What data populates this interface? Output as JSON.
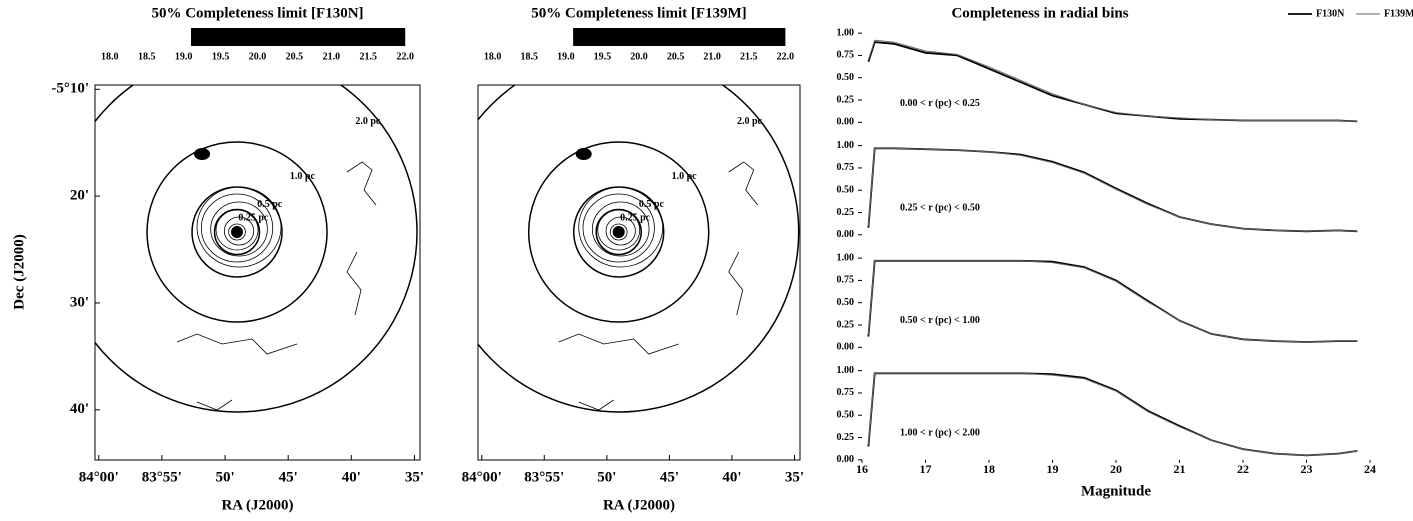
{
  "chart_data": [
    {
      "type": "map",
      "title": "50% Completeness limit [F130N]",
      "colorbar": {
        "lim": [
          17.8,
          22.2
        ],
        "filled": [
          19.1,
          22.0
        ],
        "ticks": [
          {
            "value": 18.0,
            "label": "18.0"
          },
          {
            "value": 18.5,
            "label": "18.5"
          },
          {
            "value": 19.0,
            "label": "19.0"
          },
          {
            "value": 19.5,
            "label": "19.5"
          },
          {
            "value": 20.0,
            "label": "20.0"
          },
          {
            "value": 20.5,
            "label": "20.5"
          },
          {
            "value": 21.0,
            "label": "21.0"
          },
          {
            "value": 21.5,
            "label": "21.5"
          },
          {
            "value": 22.0,
            "label": "22.0"
          }
        ]
      },
      "xlabel": "RA (J2000)",
      "ylabel": "Dec (J2000)",
      "xlim": [
        84.005,
        83.576
      ],
      "ylim": [
        -5.745,
        -5.16
      ],
      "xticks": [
        {
          "value": 84.0,
          "label": "84°00'"
        },
        {
          "value": 83.9167,
          "label": "83°55'"
        },
        {
          "value": 83.8333,
          "label": "50'"
        },
        {
          "value": 83.75,
          "label": "45'"
        },
        {
          "value": 83.6667,
          "label": "40'"
        },
        {
          "value": 83.5833,
          "label": "35'"
        }
      ],
      "yticks": [
        {
          "value": -5.1667,
          "label": "-5°10'"
        },
        {
          "value": -5.3333,
          "label": "20'"
        },
        {
          "value": -5.5,
          "label": "30'"
        },
        {
          "value": -5.6667,
          "label": "40'"
        }
      ],
      "circles": [
        {
          "value": 2.0,
          "label": "2.0 pc"
        },
        {
          "value": 1.0,
          "label": "1.0 pc"
        },
        {
          "value": 0.5,
          "label": "0.5 pc"
        },
        {
          "value": 0.25,
          "label": "0.25 pc"
        }
      ]
    },
    {
      "type": "map",
      "title": "50% Completeness limit [F139M]",
      "colorbar": {
        "lim": [
          17.8,
          22.2
        ],
        "filled": [
          19.1,
          22.0
        ],
        "ticks": [
          {
            "value": 18.0,
            "label": "18.0"
          },
          {
            "value": 18.5,
            "label": "18.5"
          },
          {
            "value": 19.0,
            "label": "19.0"
          },
          {
            "value": 19.5,
            "label": "19.5"
          },
          {
            "value": 20.0,
            "label": "20.0"
          },
          {
            "value": 20.5,
            "label": "20.5"
          },
          {
            "value": 21.0,
            "label": "21.0"
          },
          {
            "value": 21.5,
            "label": "21.5"
          },
          {
            "value": 22.0,
            "label": "22.0"
          }
        ]
      },
      "xlabel": "RA (J2000)",
      "xlim": [
        84.005,
        83.576
      ],
      "xticks": [
        {
          "value": 84.0,
          "label": "84°00'"
        },
        {
          "value": 83.9167,
          "label": "83°55'"
        },
        {
          "value": 83.8333,
          "label": "50'"
        },
        {
          "value": 83.75,
          "label": "45'"
        },
        {
          "value": 83.6667,
          "label": "40'"
        },
        {
          "value": 83.5833,
          "label": "35'"
        }
      ],
      "circles": [
        {
          "value": 2.0,
          "label": "2.0 pc"
        },
        {
          "value": 1.0,
          "label": "1.0 pc"
        },
        {
          "value": 0.5,
          "label": "0.5 pc"
        },
        {
          "value": 0.25,
          "label": "0.25 pc"
        }
      ]
    },
    {
      "type": "line",
      "title": "Completeness in radial bins",
      "legend": "top-right",
      "annotation": "0.00 < r (pc) < 0.25",
      "x": [
        16.1,
        16.2,
        16.5,
        17,
        17.5,
        18,
        18.5,
        19,
        19.5,
        20,
        20.5,
        21,
        21.5,
        22,
        22.5,
        23,
        23.5,
        23.8
      ],
      "series": [
        {
          "name": "F130N",
          "color": "#000000",
          "values": [
            0.68,
            0.9,
            0.88,
            0.78,
            0.75,
            0.6,
            0.45,
            0.3,
            0.2,
            0.1,
            0.07,
            0.04,
            0.03,
            0.02,
            0.02,
            0.02,
            0.02,
            0.01
          ]
        },
        {
          "name": "F139M",
          "color": "#666666",
          "values": [
            0.7,
            0.92,
            0.9,
            0.8,
            0.76,
            0.62,
            0.47,
            0.32,
            0.2,
            0.11,
            0.07,
            0.05,
            0.03,
            0.02,
            0.02,
            0.02,
            0.02,
            0.01
          ]
        }
      ],
      "xlim": [
        16,
        24
      ],
      "ylim": [
        -0.03,
        1.08
      ],
      "yticks": [
        {
          "value": 0,
          "label": "0.00"
        },
        {
          "value": 0.25,
          "label": "0.25"
        },
        {
          "value": 0.5,
          "label": "0.50"
        },
        {
          "value": 0.75,
          "label": "0.75"
        },
        {
          "value": 1,
          "label": "1.00"
        }
      ]
    },
    {
      "type": "line",
      "annotation": "0.25 < r (pc) < 0.50",
      "x": [
        16.1,
        16.2,
        16.5,
        17,
        17.5,
        18,
        18.5,
        19,
        19.5,
        20,
        20.5,
        21,
        21.5,
        22,
        22.5,
        23,
        23.5,
        23.8
      ],
      "series": [
        {
          "name": "F130N",
          "color": "#000000",
          "values": [
            0.08,
            0.97,
            0.97,
            0.96,
            0.95,
            0.93,
            0.9,
            0.82,
            0.7,
            0.52,
            0.35,
            0.2,
            0.12,
            0.07,
            0.05,
            0.04,
            0.05,
            0.04
          ]
        },
        {
          "name": "F139M",
          "color": "#666666",
          "values": [
            0.1,
            0.97,
            0.97,
            0.96,
            0.95,
            0.93,
            0.89,
            0.81,
            0.69,
            0.51,
            0.34,
            0.2,
            0.12,
            0.07,
            0.05,
            0.04,
            0.05,
            0.04
          ]
        }
      ],
      "xlim": [
        16,
        24
      ],
      "ylim": [
        -0.03,
        1.08
      ],
      "yticks": [
        {
          "value": 0,
          "label": "0.00"
        },
        {
          "value": 0.25,
          "label": "0.25"
        },
        {
          "value": 0.5,
          "label": "0.50"
        },
        {
          "value": 0.75,
          "label": "0.75"
        },
        {
          "value": 1,
          "label": "1.00"
        }
      ]
    },
    {
      "type": "line",
      "annotation": "0.50 < r (pc) < 1.00",
      "x": [
        16.1,
        16.2,
        16.5,
        17,
        17.5,
        18,
        18.5,
        19,
        19.5,
        20,
        20.5,
        21,
        21.5,
        22,
        22.5,
        23,
        23.5,
        23.8
      ],
      "series": [
        {
          "name": "F130N",
          "color": "#000000",
          "values": [
            0.12,
            0.97,
            0.97,
            0.97,
            0.97,
            0.97,
            0.97,
            0.96,
            0.9,
            0.75,
            0.52,
            0.3,
            0.15,
            0.09,
            0.07,
            0.06,
            0.07,
            0.07
          ]
        },
        {
          "name": "F139M",
          "color": "#666666",
          "values": [
            0.14,
            0.97,
            0.97,
            0.97,
            0.97,
            0.97,
            0.97,
            0.95,
            0.89,
            0.74,
            0.51,
            0.3,
            0.15,
            0.09,
            0.07,
            0.06,
            0.07,
            0.07
          ]
        }
      ],
      "xlim": [
        16,
        24
      ],
      "ylim": [
        -0.03,
        1.08
      ],
      "yticks": [
        {
          "value": 0,
          "label": "0.00"
        },
        {
          "value": 0.25,
          "label": "0.25"
        },
        {
          "value": 0.5,
          "label": "0.50"
        },
        {
          "value": 0.75,
          "label": "0.75"
        },
        {
          "value": 1,
          "label": "1.00"
        }
      ]
    },
    {
      "type": "line",
      "annotation": "1.00 < r (pc) < 2.00",
      "xlabel": "Magnitude",
      "x": [
        16.1,
        16.2,
        16.5,
        17,
        17.5,
        18,
        18.5,
        19,
        19.5,
        20,
        20.5,
        21,
        21.5,
        22,
        22.5,
        23,
        23.5,
        23.8
      ],
      "series": [
        {
          "name": "F130N",
          "color": "#000000",
          "values": [
            0.15,
            0.97,
            0.97,
            0.97,
            0.97,
            0.97,
            0.97,
            0.96,
            0.92,
            0.78,
            0.55,
            0.38,
            0.22,
            0.12,
            0.07,
            0.05,
            0.07,
            0.1
          ]
        },
        {
          "name": "F139M",
          "color": "#666666",
          "values": [
            0.17,
            0.97,
            0.97,
            0.97,
            0.97,
            0.97,
            0.97,
            0.95,
            0.91,
            0.77,
            0.54,
            0.37,
            0.22,
            0.12,
            0.07,
            0.05,
            0.07,
            0.1
          ]
        }
      ],
      "xlim": [
        16,
        24
      ],
      "ylim": [
        -0.03,
        1.08
      ],
      "xticks": [
        16,
        17,
        18,
        19,
        20,
        21,
        22,
        23,
        24
      ],
      "yticks": [
        {
          "value": 0,
          "label": "0.00"
        },
        {
          "value": 0.25,
          "label": "0.25"
        },
        {
          "value": 0.5,
          "label": "0.50"
        },
        {
          "value": 0.75,
          "label": "0.75"
        },
        {
          "value": 1,
          "label": "1.00"
        }
      ]
    }
  ]
}
